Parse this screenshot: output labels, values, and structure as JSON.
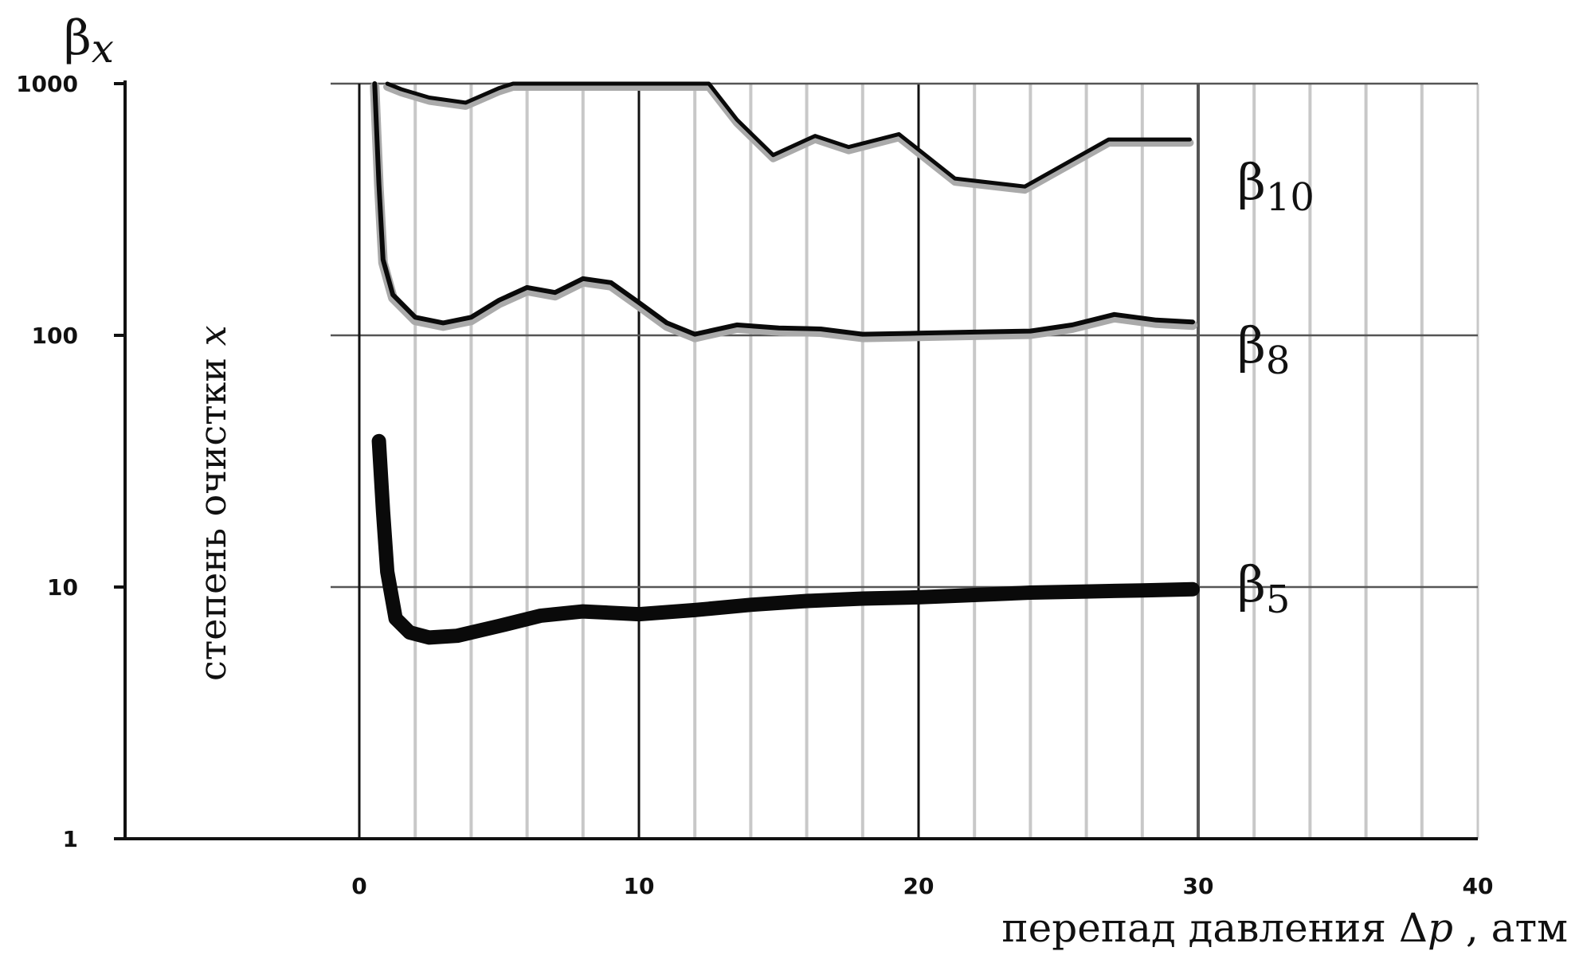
{
  "chart_data": {
    "type": "line",
    "y_scale": "log",
    "ylim": [
      1,
      1000
    ],
    "xlim": [
      0,
      40
    ],
    "y_ticks": [
      "1",
      "10",
      "100",
      "1000"
    ],
    "x_ticks": [
      "0",
      "10",
      "20",
      "30",
      "40"
    ],
    "y_axis_top_label": "β",
    "y_axis_top_sub": "x",
    "ylabel_text": "степень очистки ",
    "ylabel_var": "x",
    "xlabel_text": "перепад давления Δ",
    "xlabel_var": "p",
    "xlabel_unit": " , атм",
    "grid": true,
    "series": [
      {
        "label": "β",
        "label_sub": "10",
        "points": [
          [
            1.0,
            1000
          ],
          [
            1.5,
            950
          ],
          [
            2.5,
            880
          ],
          [
            3.8,
            840
          ],
          [
            5.0,
            960
          ],
          [
            5.5,
            1000
          ],
          [
            12.5,
            1000
          ],
          [
            13.5,
            720
          ],
          [
            14.8,
            520
          ],
          [
            16.3,
            620
          ],
          [
            17.5,
            560
          ],
          [
            19.3,
            630
          ],
          [
            21.3,
            420
          ],
          [
            23.8,
            390
          ],
          [
            26.8,
            600
          ],
          [
            29.7,
            600
          ]
        ]
      },
      {
        "label": "β",
        "label_sub": "8",
        "points": [
          [
            0.55,
            1000
          ],
          [
            0.7,
            400
          ],
          [
            0.85,
            200
          ],
          [
            1.2,
            145
          ],
          [
            2.0,
            118
          ],
          [
            3.0,
            112
          ],
          [
            4.0,
            118
          ],
          [
            5.0,
            138
          ],
          [
            6.0,
            155
          ],
          [
            7.0,
            148
          ],
          [
            8.0,
            168
          ],
          [
            9.0,
            162
          ],
          [
            10.0,
            135
          ],
          [
            11.0,
            112
          ],
          [
            12.0,
            101
          ],
          [
            13.5,
            110
          ],
          [
            15.0,
            107
          ],
          [
            16.5,
            106
          ],
          [
            18.0,
            101
          ],
          [
            20.0,
            102
          ],
          [
            22.0,
            103
          ],
          [
            24.0,
            104
          ],
          [
            25.5,
            110
          ],
          [
            27.0,
            121
          ],
          [
            28.5,
            115
          ],
          [
            29.8,
            113
          ]
        ]
      },
      {
        "label": "β",
        "label_sub": "5",
        "points": [
          [
            0.7,
            38
          ],
          [
            0.85,
            20
          ],
          [
            1.0,
            11.5
          ],
          [
            1.3,
            7.5
          ],
          [
            1.8,
            6.6
          ],
          [
            2.5,
            6.3
          ],
          [
            3.5,
            6.4
          ],
          [
            5.0,
            7.0
          ],
          [
            6.5,
            7.7
          ],
          [
            8.0,
            8.0
          ],
          [
            10.0,
            7.8
          ],
          [
            12.0,
            8.1
          ],
          [
            14.0,
            8.5
          ],
          [
            16.0,
            8.8
          ],
          [
            18.0,
            9.0
          ],
          [
            20.0,
            9.1
          ],
          [
            22.0,
            9.3
          ],
          [
            24.0,
            9.5
          ],
          [
            26.0,
            9.6
          ],
          [
            28.0,
            9.7
          ],
          [
            29.8,
            9.8
          ]
        ]
      }
    ]
  }
}
